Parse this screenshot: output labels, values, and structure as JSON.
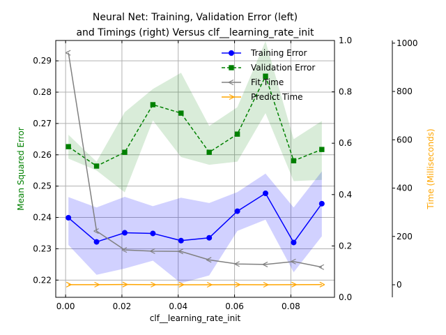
{
  "chart_data": {
    "type": "line",
    "title_lines": [
      "Neural Net: Training, Validation Error (left)",
      "and Timings (right) Versus clf__learning_rate_init"
    ],
    "xlabel": "clf__learning_rate_init",
    "ylabel_left": "Mean Squared Error",
    "ylabel_right_time": "Time (Milliseconds)",
    "xlim": [
      -0.0035,
      0.0955
    ],
    "x_ticks": [
      0.0,
      0.02,
      0.04,
      0.06,
      0.08
    ],
    "x_tick_labels": [
      "0.00",
      "0.02",
      "0.04",
      "0.06",
      "0.08"
    ],
    "ylim_left": [
      0.2145,
      0.2965
    ],
    "y_ticks_left": [
      0.22,
      0.23,
      0.24,
      0.25,
      0.26,
      0.27,
      0.28,
      0.29
    ],
    "y_tick_labels_left": [
      "0.22",
      "0.23",
      "0.24",
      "0.25",
      "0.26",
      "0.27",
      "0.28",
      "0.29"
    ],
    "ylim_mid": [
      0.0,
      1.0
    ],
    "y_ticks_mid": [
      0.0,
      0.2,
      0.4,
      0.6,
      0.8,
      1.0
    ],
    "y_tick_labels_mid": [
      "0.0",
      "0.2",
      "0.4",
      "0.6",
      "0.8",
      "1.0"
    ],
    "ylim_time": [
      -52,
      1011
    ],
    "y_ticks_time": [
      0,
      200,
      400,
      600,
      800,
      1000
    ],
    "y_tick_labels_time": [
      "0",
      "200",
      "400",
      "600",
      "800",
      "1000"
    ],
    "grid": true,
    "legend_position": "top-right",
    "x": [
      0.001,
      0.011,
      0.021,
      0.031,
      0.041,
      0.051,
      0.061,
      0.071,
      0.081,
      0.091
    ],
    "series": [
      {
        "name": "Training Error",
        "axis": "left",
        "color": "#0000ff",
        "style": "solid",
        "marker": "circle",
        "values": [
          0.2399,
          0.2322,
          0.2351,
          0.2349,
          0.2326,
          0.2335,
          0.242,
          0.2477,
          0.232,
          0.2444
        ],
        "band_lower": [
          0.2312,
          0.2217,
          0.2237,
          0.2262,
          0.219,
          0.2215,
          0.2357,
          0.2393,
          0.2225,
          0.234
        ],
        "band_upper": [
          0.2465,
          0.2432,
          0.2466,
          0.2436,
          0.2463,
          0.2446,
          0.2481,
          0.254,
          0.2432,
          0.2547
        ],
        "band_color": "#0000ff"
      },
      {
        "name": "Validation Error",
        "axis": "left",
        "color": "#008000",
        "style": "dashed",
        "marker": "square",
        "values": [
          0.2626,
          0.2564,
          0.2608,
          0.276,
          0.2733,
          0.2608,
          0.2666,
          0.2851,
          0.2581,
          0.2617
        ],
        "band_lower": [
          0.2588,
          0.255,
          0.248,
          0.271,
          0.2593,
          0.2568,
          0.2578,
          0.2733,
          0.2516,
          0.252
        ],
        "band_upper": [
          0.2664,
          0.2578,
          0.2736,
          0.281,
          0.2862,
          0.2692,
          0.2752,
          0.2963,
          0.265,
          0.2708
        ],
        "band_color": "#008000"
      },
      {
        "name": "Fit Time",
        "axis": "time",
        "color": "#808080",
        "style": "solid",
        "marker": "tri_left",
        "values": [
          960,
          222,
          144,
          139,
          138,
          103,
          86,
          84,
          96,
          73
        ]
      },
      {
        "name": "Predict Time",
        "axis": "time",
        "color": "#ffa500",
        "style": "solid",
        "marker": "tri_right",
        "values": [
          0.5,
          0.3,
          1.0,
          0.4,
          0.1,
          0.0,
          0.4,
          0.0,
          0.5,
          0.6
        ]
      }
    ]
  }
}
